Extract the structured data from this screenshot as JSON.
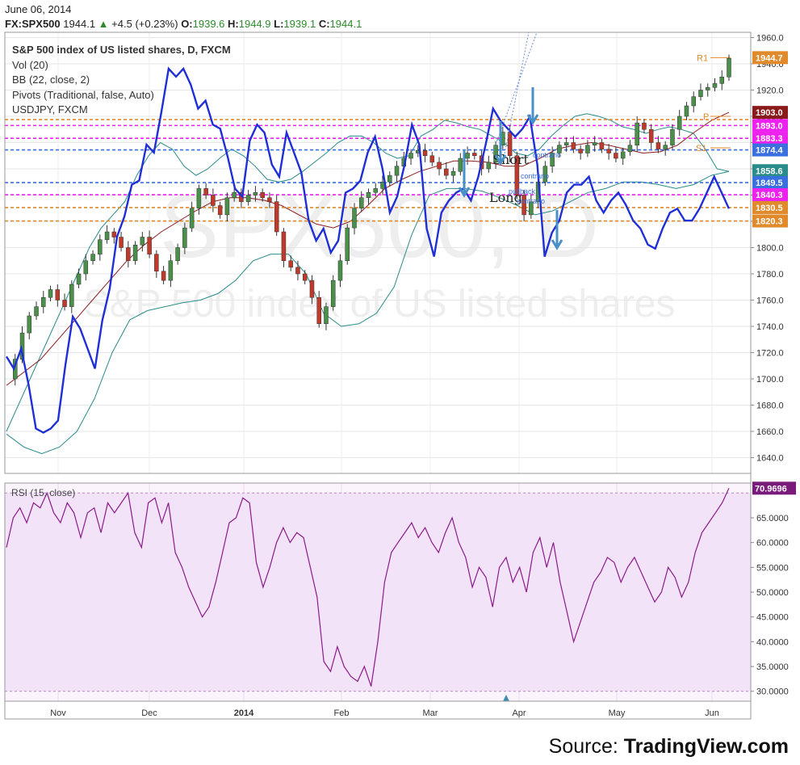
{
  "header": {
    "date": "June 06, 2014",
    "symbol": "FX:SPX500",
    "last": "1944.1",
    "change": "+4.5 (+0.23%)",
    "open_label": "O:",
    "open": "1939.6",
    "high_label": "H:",
    "high": "1944.9",
    "low_label": "L:",
    "low": "1939.1",
    "close_label": "C:",
    "close": "1944.1"
  },
  "legend": {
    "title": "S&P 500 index of US listed shares, D, FXCM",
    "vol": "Vol (20)",
    "bb": "BB (22, close, 2)",
    "pivots": "Pivots (Traditional, false, Auto)",
    "overlay": "USDJPY, FXCM"
  },
  "watermark": {
    "big": "SPX500, D",
    "small": "S&P 500 index of US listed shares"
  },
  "annotations": {
    "short": "Short",
    "long": "Long",
    "small_texts": [
      "contrario",
      "contrario",
      "pullback",
      "contrario"
    ]
  },
  "rsi": {
    "label": "RSI (15, close)",
    "last_badge": "70.9696"
  },
  "source": {
    "prefix": "Source: ",
    "brand": "TradingView.com"
  },
  "colors": {
    "up_candle": "#4a8f4a",
    "down_candle": "#c0392b",
    "overlay_line": "#1f2fd6",
    "bb_band": "#2a8b8b",
    "bb_basis": "#8b1a1a",
    "pivot_orange": "#e08a2c",
    "pivot_magenta": "#ee22ee",
    "pivot_blue": "#3a6fe0",
    "rsi_line": "#8b1a8b",
    "rsi_fill": "#f3e3f8"
  },
  "chart_data": [
    {
      "type": "candlestick",
      "title": "S&P 500 index of US listed shares, D, FXCM",
      "x_ticks": [
        "Nov",
        "Dec",
        "2014",
        "Feb",
        "Mar",
        "Apr",
        "May",
        "Jun"
      ],
      "y_ticks": [
        1640.0,
        1660.0,
        1680.0,
        1700.0,
        1720.0,
        1740.0,
        1760.0,
        1780.0,
        1800.0,
        1820.0,
        1840.0,
        1860.0,
        1880.0,
        1900.0,
        1920.0,
        1940.0,
        1960.0
      ],
      "ylim": [
        1628,
        1964
      ],
      "price_labels": [
        {
          "value": 1944.7,
          "text": "1944.7",
          "color": "#e08a2c"
        },
        {
          "value": 1903.0,
          "text": "1903.0",
          "color": "#8b1a1a"
        },
        {
          "value": 1893.0,
          "text": "1893.0",
          "color": "#ee22ee"
        },
        {
          "value": 1883.3,
          "text": "1883.3",
          "color": "#ee22ee"
        },
        {
          "value": 1874.4,
          "text": "1874.4",
          "color": "#3a6fe0"
        },
        {
          "value": 1858.6,
          "text": "1858.6",
          "color": "#2a8b8b"
        },
        {
          "value": 1849.5,
          "text": "1849.5",
          "color": "#3a6fe0"
        },
        {
          "value": 1840.3,
          "text": "1840.3",
          "color": "#ee22ee"
        },
        {
          "value": 1830.5,
          "text": "1830.5",
          "color": "#e08a2c"
        },
        {
          "value": 1820.3,
          "text": "1820.3",
          "color": "#e08a2c"
        }
      ],
      "pivot_levels": [
        {
          "value": 1897.5,
          "color": "#e08a2c"
        },
        {
          "value": 1893.0,
          "color": "#ee22ee"
        },
        {
          "value": 1883.3,
          "color": "#ee22ee"
        },
        {
          "value": 1874.4,
          "color": "#3a6fe0"
        },
        {
          "value": 1849.5,
          "color": "#3a6fe0"
        },
        {
          "value": 1840.3,
          "color": "#ee22ee"
        },
        {
          "value": 1830.5,
          "color": "#e08a2c"
        },
        {
          "value": 1820.3,
          "color": "#e08a2c"
        }
      ],
      "pivot_markers": [
        {
          "label": "R1",
          "value": 1944.7
        },
        {
          "label": "P",
          "value": 1900.0
        },
        {
          "label": "S1",
          "value": 1876.0
        }
      ],
      "close_path": [
        1700,
        1715,
        1735,
        1748,
        1755,
        1762,
        1768,
        1760,
        1755,
        1772,
        1780,
        1790,
        1795,
        1806,
        1812,
        1808,
        1800,
        1790,
        1802,
        1808,
        1795,
        1782,
        1775,
        1790,
        1800,
        1815,
        1830,
        1845,
        1840,
        1832,
        1825,
        1838,
        1842,
        1835,
        1840,
        1842,
        1838,
        1835,
        1812,
        1790,
        1785,
        1780,
        1775,
        1762,
        1742,
        1755,
        1775,
        1790,
        1815,
        1830,
        1838,
        1842,
        1845,
        1850,
        1855,
        1862,
        1868,
        1872,
        1874,
        1870,
        1865,
        1860,
        1855,
        1858,
        1868,
        1872,
        1870,
        1860,
        1865,
        1878,
        1888,
        1870,
        1840,
        1825,
        1835,
        1850,
        1862,
        1872,
        1878,
        1880,
        1875,
        1872,
        1878,
        1880,
        1875,
        1872,
        1868,
        1873,
        1878,
        1895,
        1890,
        1880,
        1875,
        1878,
        1890,
        1900,
        1908,
        1915,
        1920,
        1922,
        1925,
        1930,
        1944.1
      ],
      "bb_upper_path": [
        1660,
        1680,
        1700,
        1720,
        1740,
        1760,
        1780,
        1800,
        1815,
        1825,
        1835,
        1855,
        1870,
        1880,
        1875,
        1862,
        1855,
        1860,
        1868,
        1875,
        1870,
        1862,
        1852,
        1850,
        1852,
        1858,
        1865,
        1872,
        1880,
        1885,
        1885,
        1880,
        1872,
        1868,
        1870,
        1885,
        1890,
        1897,
        1895,
        1892,
        1890,
        1885,
        1880,
        1872,
        1870,
        1875,
        1885,
        1893,
        1900,
        1902,
        1900,
        1897,
        1892,
        1890,
        1887,
        1890,
        1892,
        1890,
        1887,
        1875,
        1860,
        1858
      ],
      "bb_basis_path": [
        1695,
        1705,
        1715,
        1730,
        1745,
        1760,
        1775,
        1790,
        1802,
        1812,
        1820,
        1828,
        1835,
        1838,
        1838,
        1836,
        1832,
        1825,
        1818,
        1815,
        1820,
        1832,
        1845,
        1852,
        1858,
        1862,
        1866,
        1866,
        1865,
        1862,
        1862,
        1868,
        1875,
        1878,
        1880,
        1878,
        1875,
        1872,
        1873,
        1878,
        1888,
        1897,
        1903
      ],
      "bb_lower_path": [
        1658,
        1648,
        1643,
        1648,
        1660,
        1685,
        1720,
        1745,
        1752,
        1755,
        1758,
        1760,
        1765,
        1775,
        1790,
        1795,
        1795,
        1780,
        1750,
        1740,
        1742,
        1750,
        1770,
        1810,
        1840,
        1845,
        1845,
        1843,
        1838,
        1832,
        1825,
        1828,
        1835,
        1842,
        1845,
        1850,
        1850,
        1848,
        1845,
        1848,
        1855,
        1858
      ]
    },
    {
      "type": "line",
      "title": "USDJPY, FXCM",
      "series": [
        {
          "name": "USDJPY, FXCM",
          "values": [
            0.28,
            0.25,
            0.3,
            0.21,
            0.1,
            0.09,
            0.1,
            0.12,
            0.26,
            0.38,
            0.35,
            0.3,
            0.25,
            0.37,
            0.45,
            0.58,
            0.63,
            0.71,
            0.72,
            0.81,
            0.79,
            0.89,
            1.0,
            0.98,
            1.0,
            0.96,
            0.9,
            0.92,
            0.86,
            0.85,
            0.78,
            0.7,
            0.68,
            0.82,
            0.86,
            0.84,
            0.76,
            0.73,
            0.84,
            0.79,
            0.74,
            0.62,
            0.57,
            0.6,
            0.54,
            0.57,
            0.69,
            0.7,
            0.72,
            0.79,
            0.83,
            0.75,
            0.64,
            0.68,
            0.76,
            0.86,
            0.81,
            0.6,
            0.53,
            0.64,
            0.67,
            0.69,
            0.7,
            0.67,
            0.73,
            0.81,
            0.9,
            0.87,
            0.85,
            0.83,
            0.85,
            0.88,
            0.76,
            0.53,
            0.59,
            0.62,
            0.69,
            0.71,
            0.71,
            0.73,
            0.67,
            0.64,
            0.67,
            0.69,
            0.66,
            0.62,
            0.6,
            0.56,
            0.55,
            0.6,
            0.64,
            0.65,
            0.62,
            0.62,
            0.65,
            0.69,
            0.73,
            0.69,
            0.65
          ]
        }
      ]
    },
    {
      "type": "line",
      "title": "RSI (15, close)",
      "y_ticks": [
        30.0,
        35.0,
        40.0,
        45.0,
        50.0,
        55.0,
        60.0,
        65.0,
        70.9696
      ],
      "y_tick_labels": [
        "30.0000",
        "35.0000",
        "40.0000",
        "45.0000",
        "50.0000",
        "55.0000",
        "60.0000",
        "65.0000"
      ],
      "ylim": [
        28,
        72
      ],
      "band": [
        30,
        70
      ],
      "series": [
        {
          "name": "RSI (15, close)",
          "values": [
            59,
            65,
            67,
            64,
            68,
            67,
            70,
            66,
            64,
            68,
            66,
            61,
            66,
            67,
            62,
            68,
            66,
            68,
            70,
            62,
            59,
            68,
            69,
            64,
            68,
            58,
            55,
            51,
            48,
            45,
            47,
            52,
            58,
            64,
            65,
            69,
            68,
            56,
            51,
            55,
            60,
            63,
            60,
            62,
            61,
            55,
            49,
            36,
            34,
            39,
            35,
            33,
            32,
            35,
            31,
            40,
            52,
            58,
            60,
            62,
            64,
            61,
            63,
            60,
            58,
            62,
            65,
            60,
            57,
            51,
            55,
            53,
            47,
            55,
            57,
            52,
            55,
            50,
            58,
            61,
            55,
            60,
            52,
            46,
            40,
            44,
            48,
            52,
            54,
            57,
            56,
            52,
            55,
            57,
            54,
            51,
            48,
            50,
            55,
            53,
            49,
            52,
            58,
            62,
            64,
            66,
            68,
            70.9696
          ]
        }
      ]
    }
  ]
}
